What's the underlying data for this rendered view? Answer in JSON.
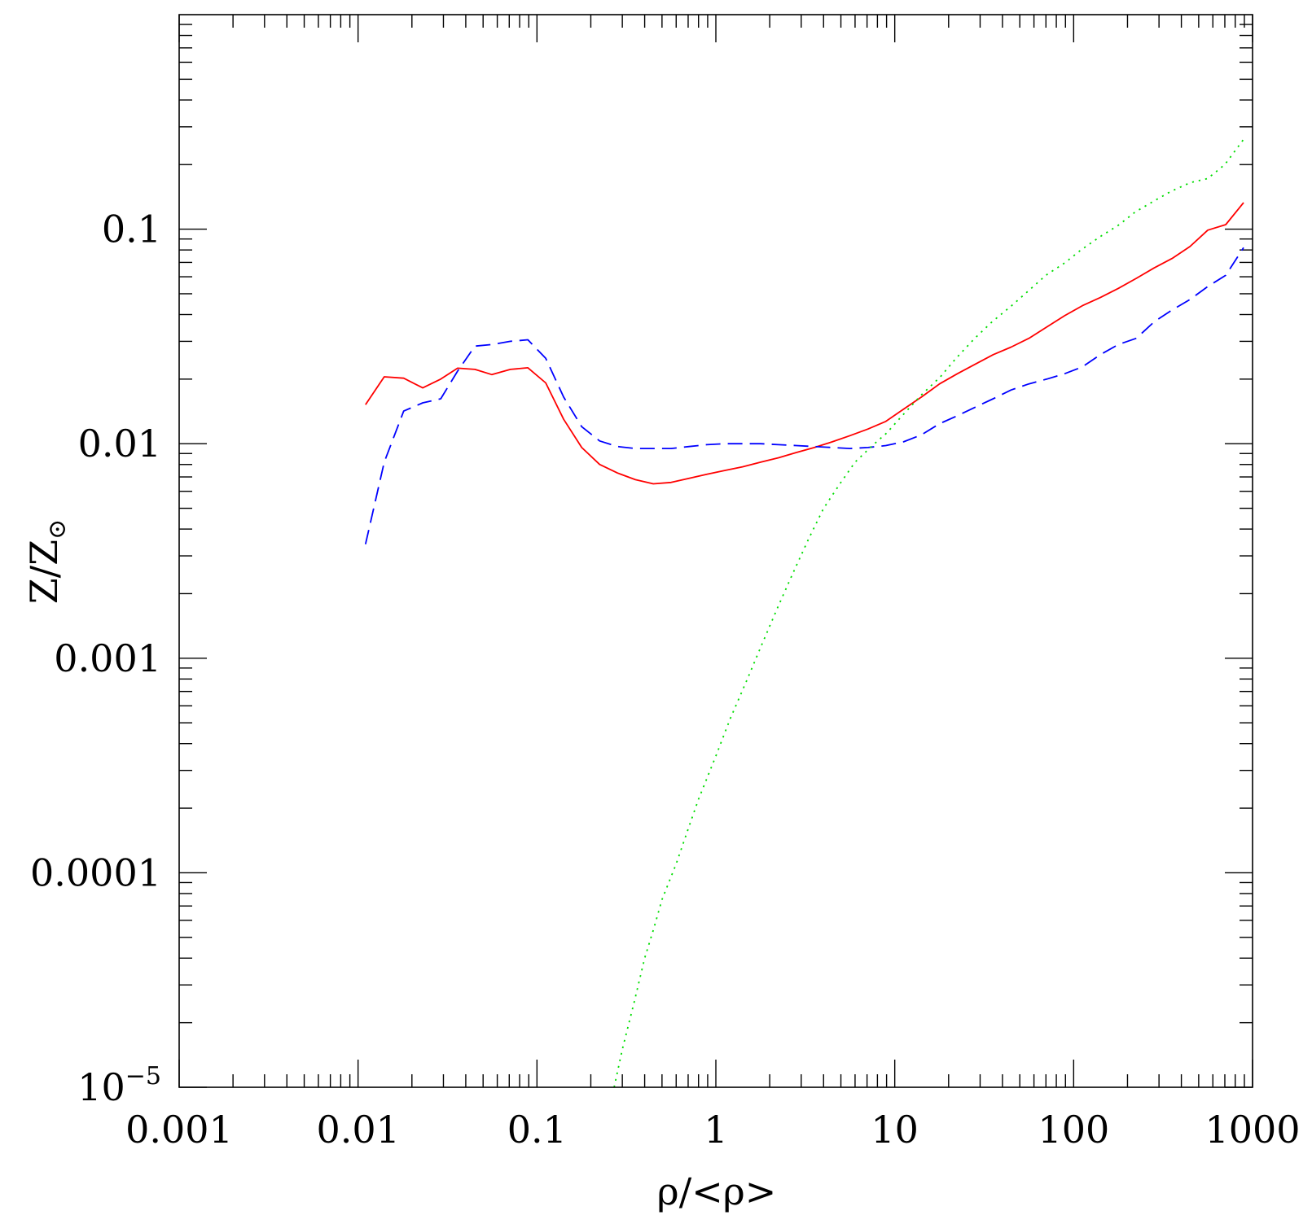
{
  "chart_data": {
    "type": "line",
    "title": "",
    "xlabel": "ρ/<ρ>",
    "ylabel": "Z/Z",
    "ylabel_subscript": "⊙",
    "xscale": "log",
    "yscale": "log",
    "xlim": [
      0.001,
      1000
    ],
    "ylim": [
      1e-05,
      1
    ],
    "grid": false,
    "legend": "none",
    "xticks": [
      {
        "value": 0.001,
        "label": "0.001"
      },
      {
        "value": 0.01,
        "label": "0.01"
      },
      {
        "value": 0.1,
        "label": "0.1"
      },
      {
        "value": 1,
        "label": "1"
      },
      {
        "value": 10,
        "label": "10"
      },
      {
        "value": 100,
        "label": "100"
      },
      {
        "value": 1000,
        "label": "1000"
      }
    ],
    "yticks": [
      {
        "value": 1e-05,
        "label": "10",
        "sup": "−5"
      },
      {
        "value": 0.0001,
        "label": "0.0001",
        "sup": ""
      },
      {
        "value": 0.001,
        "label": "0.001",
        "sup": ""
      },
      {
        "value": 0.01,
        "label": "0.01",
        "sup": ""
      },
      {
        "value": 0.1,
        "label": "0.1",
        "sup": ""
      }
    ],
    "series": [
      {
        "color": "#ff0000",
        "style": "solid",
        "x": [
          0.011,
          0.014,
          0.018,
          0.023,
          0.029,
          0.036,
          0.045,
          0.056,
          0.071,
          0.089,
          0.112,
          0.141,
          0.178,
          0.224,
          0.282,
          0.355,
          0.447,
          0.562,
          0.708,
          0.891,
          1.12,
          1.41,
          1.78,
          2.24,
          2.82,
          3.55,
          4.47,
          5.62,
          7.08,
          8.91,
          11.2,
          14.1,
          17.8,
          22.4,
          28.2,
          35.5,
          44.7,
          56.2,
          70.8,
          89.1,
          112,
          141,
          178,
          224,
          282,
          355,
          447,
          562,
          708,
          891
        ],
        "y": [
          0.0152,
          0.0205,
          0.0202,
          0.0182,
          0.02,
          0.0225,
          0.0222,
          0.021,
          0.0222,
          0.0226,
          0.0192,
          0.013,
          0.0096,
          0.008,
          0.0073,
          0.0068,
          0.0065,
          0.0066,
          0.0069,
          0.0072,
          0.0075,
          0.0078,
          0.0082,
          0.0086,
          0.0091,
          0.0096,
          0.0102,
          0.0109,
          0.0117,
          0.0127,
          0.0145,
          0.0165,
          0.019,
          0.0212,
          0.0235,
          0.026,
          0.0282,
          0.031,
          0.035,
          0.0395,
          0.044,
          0.048,
          0.053,
          0.059,
          0.066,
          0.073,
          0.083,
          0.099,
          0.105,
          0.133
        ]
      },
      {
        "color": "#0000ff",
        "style": "dashed",
        "x": [
          0.011,
          0.014,
          0.018,
          0.023,
          0.029,
          0.036,
          0.045,
          0.056,
          0.071,
          0.089,
          0.112,
          0.141,
          0.178,
          0.224,
          0.282,
          0.355,
          0.447,
          0.562,
          0.708,
          0.891,
          1.12,
          1.41,
          1.78,
          2.24,
          2.82,
          3.55,
          4.47,
          5.62,
          7.08,
          8.91,
          11.2,
          14.1,
          17.8,
          22.4,
          28.2,
          35.5,
          44.7,
          56.2,
          70.8,
          89.1,
          112,
          141,
          178,
          224,
          282,
          355,
          447,
          562,
          708,
          891
        ],
        "y": [
          0.0034,
          0.0082,
          0.0142,
          0.0155,
          0.0162,
          0.0218,
          0.0285,
          0.029,
          0.03,
          0.0305,
          0.025,
          0.0165,
          0.012,
          0.0103,
          0.0097,
          0.0095,
          0.0095,
          0.0095,
          0.0097,
          0.0099,
          0.01,
          0.01,
          0.01,
          0.0099,
          0.0098,
          0.0097,
          0.0096,
          0.0095,
          0.0096,
          0.0098,
          0.0102,
          0.011,
          0.0124,
          0.0135,
          0.0148,
          0.0162,
          0.0178,
          0.019,
          0.02,
          0.0212,
          0.0228,
          0.026,
          0.029,
          0.031,
          0.037,
          0.042,
          0.047,
          0.054,
          0.061,
          0.082
        ]
      },
      {
        "color": "#00dd00",
        "style": "dotted",
        "x": [
          0.27,
          0.3,
          0.35,
          0.4,
          0.45,
          0.5,
          0.6,
          0.7,
          0.8,
          1.0,
          1.2,
          1.5,
          1.8,
          2.2,
          2.7,
          3.3,
          4.0,
          5.0,
          6.0,
          7.5,
          9.0,
          11.0,
          14.0,
          18.0,
          22.0,
          28.0,
          35.0,
          45.0,
          55.0,
          70.0,
          90.0,
          110.0,
          140.0,
          180.0,
          220.0,
          280.0,
          350.0,
          450.0,
          560.0,
          700.0,
          900.0
        ],
        "y": [
          1e-05,
          1.5e-05,
          2.5e-05,
          4e-05,
          5.5e-05,
          7.5e-05,
          0.00011,
          0.00016,
          0.00022,
          0.00035,
          0.00052,
          0.0008,
          0.00115,
          0.0017,
          0.0025,
          0.0036,
          0.005,
          0.0066,
          0.0082,
          0.0098,
          0.0112,
          0.0135,
          0.0168,
          0.0205,
          0.025,
          0.031,
          0.037,
          0.044,
          0.051,
          0.061,
          0.07,
          0.08,
          0.092,
          0.105,
          0.12,
          0.135,
          0.15,
          0.165,
          0.172,
          0.2,
          0.265
        ]
      }
    ]
  }
}
